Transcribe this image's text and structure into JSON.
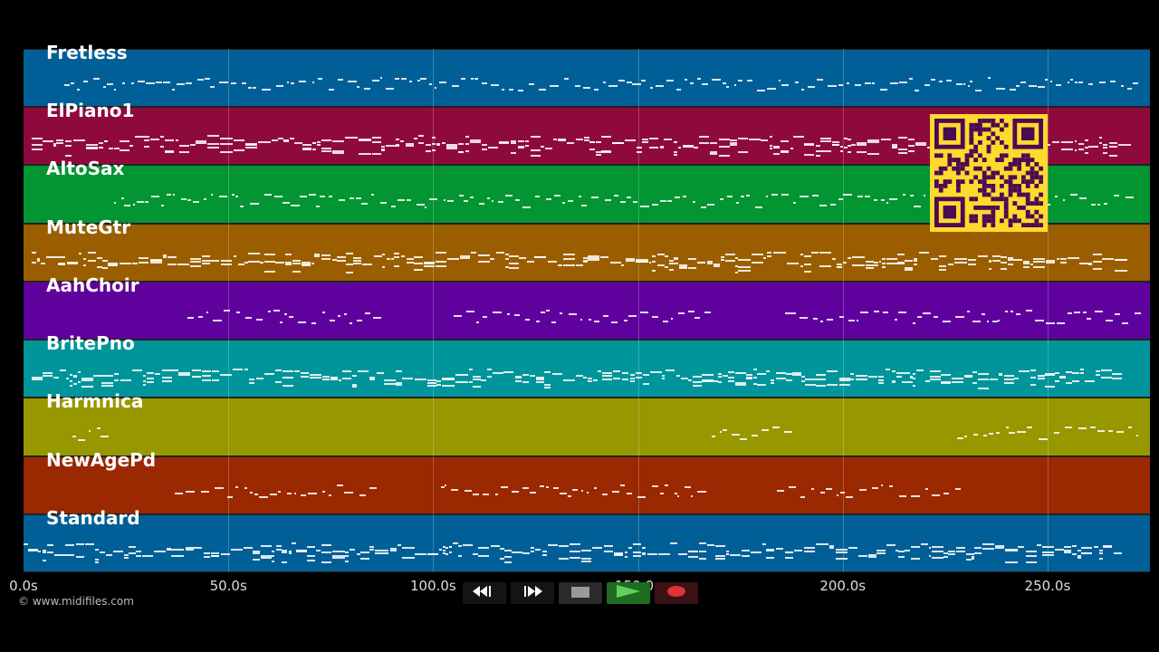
{
  "tracks": [
    {
      "name": "Fretless",
      "color": "#005f96"
    },
    {
      "name": "ElPiano1",
      "color": "#8f0a3c"
    },
    {
      "name": "AltoSax",
      "color": "#029531"
    },
    {
      "name": "MuteGtr",
      "color": "#9a5e00"
    },
    {
      "name": "AahChoir",
      "color": "#5f029d"
    },
    {
      "name": "BritePno",
      "color": "#00959a"
    },
    {
      "name": "Harmnica",
      "color": "#979700"
    },
    {
      "name": "NewAgePd",
      "color": "#9a2800"
    },
    {
      "name": "Standard",
      "color": "#005f96"
    }
  ],
  "time_axis": {
    "max_seconds": 275,
    "ticks": [
      {
        "value": 0,
        "label": "0.0s"
      },
      {
        "value": 50,
        "label": "50.0s"
      },
      {
        "value": 100,
        "label": "100.0s"
      },
      {
        "value": 150,
        "label": "150.0s"
      },
      {
        "value": 200,
        "label": "200.0s"
      },
      {
        "value": 250,
        "label": "250.0s"
      }
    ]
  },
  "copyright": "© www.midifiles.com",
  "transport": {
    "rewind_icon": "rewind-icon",
    "fast_forward_icon": "fast-forward-icon",
    "stop_icon": "stop-icon",
    "play_icon": "play-icon",
    "record_icon": "record-icon",
    "play_color": "#1f8a23",
    "record_color": "#e0303a"
  },
  "overlay": {
    "qr_color": "#ffd92e",
    "qr_dark": "#4a0b52"
  }
}
